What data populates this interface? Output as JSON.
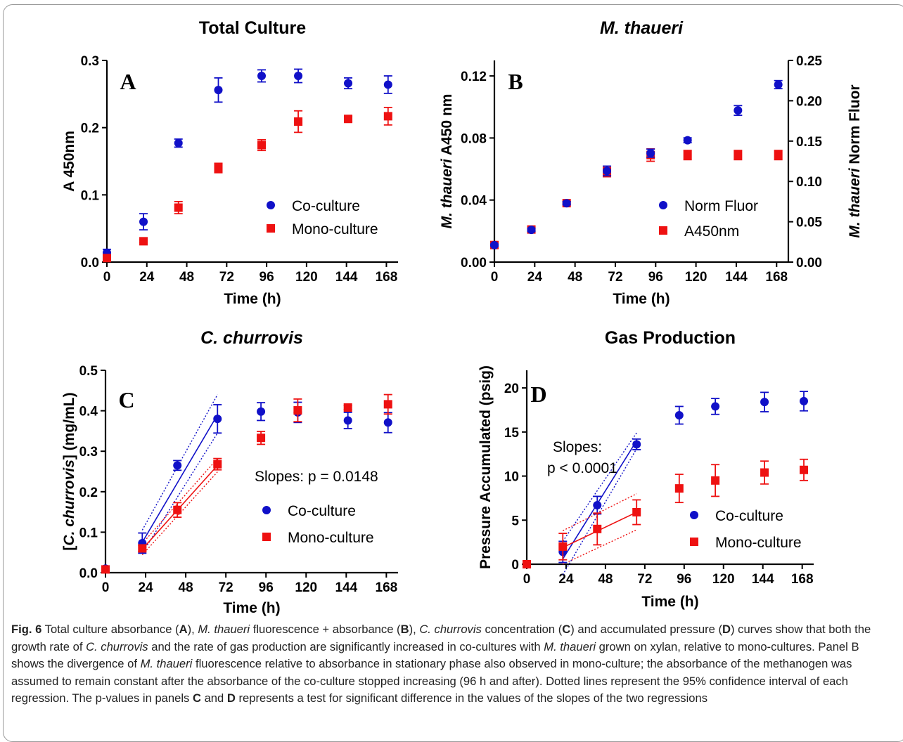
{
  "chart_data": [
    {
      "panel": "A",
      "type": "scatter",
      "title": "Total Culture",
      "xlabel": "Time (h)",
      "ylabel": "A 450nm",
      "xlim": [
        0,
        175
      ],
      "ylim": [
        0,
        0.3
      ],
      "xticks": [
        "0",
        "24",
        "48",
        "72",
        "96",
        "120",
        "144",
        "168"
      ],
      "yticks": [
        "0.0",
        "0.1",
        "0.2",
        "0.3"
      ],
      "legend_position": "lower-right",
      "series": [
        {
          "name": "Co-culture",
          "marker": "circle",
          "color": "#1010c8",
          "x": [
            0,
            22,
            43,
            67,
            93,
            115,
            145,
            169
          ],
          "y": [
            0.014,
            0.06,
            0.177,
            0.256,
            0.277,
            0.277,
            0.266,
            0.264
          ],
          "err": [
            0.005,
            0.012,
            0.006,
            0.018,
            0.009,
            0.01,
            0.008,
            0.013
          ]
        },
        {
          "name": "Mono-culture",
          "marker": "square",
          "color": "#ee1111",
          "x": [
            0,
            22,
            43,
            67,
            93,
            115,
            145,
            169
          ],
          "y": [
            0.006,
            0.031,
            0.081,
            0.14,
            0.174,
            0.209,
            0.213,
            0.217
          ],
          "err": [
            0.002,
            0.002,
            0.009,
            0.007,
            0.008,
            0.016,
            0.004,
            0.013
          ]
        }
      ]
    },
    {
      "panel": "B",
      "type": "scatter",
      "title": "M. thaueri",
      "xlabel": "Time (h)",
      "ylabel": "M. thaueri A450 nm",
      "y2label": "M. thaueri Norm Fluor",
      "xlim": [
        0,
        175
      ],
      "ylim": [
        0,
        0.13
      ],
      "y2lim": [
        0,
        0.25
      ],
      "xticks": [
        "0",
        "24",
        "48",
        "72",
        "96",
        "120",
        "144",
        "168"
      ],
      "yticks": [
        "0.00",
        "0.04",
        "0.08",
        "0.12"
      ],
      "y2ticks": [
        "0.00",
        "0.05",
        "0.10",
        "0.15",
        "0.20",
        "0.25"
      ],
      "legend_position": "lower-right",
      "series": [
        {
          "name": "Norm Fluor",
          "marker": "circle",
          "color": "#1010c8",
          "axis": "right",
          "x": [
            0,
            22,
            43,
            67,
            93,
            115,
            145,
            169
          ],
          "y": [
            0.021,
            0.04,
            0.073,
            0.113,
            0.135,
            0.151,
            0.188,
            0.22
          ],
          "err": [
            0.001,
            0.002,
            0.002,
            0.006,
            0.005,
            0.003,
            0.006,
            0.005
          ]
        },
        {
          "name": "A450nm",
          "marker": "square",
          "color": "#ee1111",
          "axis": "left",
          "x": [
            0,
            22,
            43,
            67,
            93,
            115,
            145,
            169
          ],
          "y": [
            0.011,
            0.021,
            0.038,
            0.058,
            0.069,
            0.069,
            0.069,
            0.069
          ],
          "err": [
            0.0005,
            0.001,
            0.001,
            0.003,
            0.004,
            0.003,
            0.003,
            0.003
          ]
        }
      ]
    },
    {
      "panel": "C",
      "type": "scatter",
      "title": "C. churrovis",
      "xlabel": "Time (h)",
      "ylabel": "[C. churrovis] (mg/mL)",
      "xlim": [
        0,
        175
      ],
      "ylim": [
        0,
        0.5
      ],
      "xticks": [
        "0",
        "24",
        "48",
        "72",
        "96",
        "120",
        "144",
        "168"
      ],
      "yticks": [
        "0.0",
        "0.1",
        "0.2",
        "0.3",
        "0.4",
        "0.5"
      ],
      "annotation": "Slopes: p = 0.0148",
      "legend_position": "lower-right",
      "series": [
        {
          "name": "Co-culture",
          "marker": "circle",
          "color": "#1010c8",
          "x": [
            0,
            22,
            43,
            67,
            93,
            115,
            145,
            169
          ],
          "y": [
            0.01,
            0.073,
            0.265,
            0.38,
            0.398,
            0.396,
            0.376,
            0.371
          ],
          "err": [
            0.003,
            0.025,
            0.012,
            0.035,
            0.022,
            0.025,
            0.02,
            0.025
          ],
          "fit": {
            "x0": 22,
            "x1": 67,
            "y0": 0.075,
            "y1": 0.39
          },
          "ci_upper": [
            0.105,
            0.44
          ],
          "ci_lower": [
            0.048,
            0.345
          ]
        },
        {
          "name": "Mono-culture",
          "marker": "square",
          "color": "#ee1111",
          "x": [
            0,
            22,
            43,
            67,
            93,
            115,
            145,
            169
          ],
          "y": [
            0.008,
            0.06,
            0.155,
            0.268,
            0.333,
            0.401,
            0.408,
            0.416
          ],
          "err": [
            0.002,
            0.008,
            0.018,
            0.014,
            0.016,
            0.028,
            0.005,
            0.024
          ],
          "fit": {
            "x0": 22,
            "x1": 67,
            "y0": 0.058,
            "y1": 0.265
          },
          "ci_upper": [
            0.072,
            0.282
          ],
          "ci_lower": [
            0.044,
            0.249
          ]
        }
      ]
    },
    {
      "panel": "D",
      "type": "scatter",
      "title": "Gas Production",
      "xlabel": "Time (h)",
      "ylabel": "Pressure Accumulated (psig)",
      "xlim": [
        0,
        175
      ],
      "ylim": [
        0,
        22
      ],
      "xticks": [
        "0",
        "24",
        "48",
        "72",
        "96",
        "120",
        "144",
        "168"
      ],
      "yticks": [
        "0",
        "5",
        "10",
        "15",
        "20"
      ],
      "annotation": [
        "Slopes:",
        "p < 0.0001"
      ],
      "legend_position": "lower-right",
      "series": [
        {
          "name": "Co-culture",
          "marker": "circle",
          "color": "#1010c8",
          "x": [
            0,
            22,
            43,
            67,
            93,
            115,
            145,
            169
          ],
          "y": [
            0.0,
            1.4,
            6.7,
            13.6,
            16.9,
            17.9,
            18.4,
            18.5
          ],
          "err": [
            0.1,
            1.2,
            1.0,
            0.6,
            1.0,
            0.9,
            1.1,
            1.1
          ],
          "fit": {
            "x0": 22,
            "x1": 67,
            "y0": 0.6,
            "y1": 14.0
          },
          "ci_upper": [
            2.6,
            14.9
          ],
          "ci_lower": [
            -1.2,
            13.1
          ]
        },
        {
          "name": "Mono-culture",
          "marker": "square",
          "color": "#ee1111",
          "x": [
            0,
            22,
            43,
            67,
            93,
            115,
            145,
            169
          ],
          "y": [
            0.0,
            2.0,
            4.0,
            5.9,
            8.6,
            9.5,
            10.4,
            10.7
          ],
          "err": [
            0.1,
            1.5,
            1.8,
            1.4,
            1.6,
            1.8,
            1.3,
            1.2
          ],
          "fit": {
            "x0": 22,
            "x1": 67,
            "y0": 1.9,
            "y1": 5.9
          },
          "ci_upper": [
            3.8,
            8.0
          ],
          "ci_lower": [
            0.0,
            3.9
          ]
        }
      ]
    }
  ],
  "caption": {
    "fig_label": "Fig. 6",
    "text_segments": [
      {
        "t": "  Total culture absorbance ("
      },
      {
        "t": "A",
        "b": true
      },
      {
        "t": "), "
      },
      {
        "t": "M. thaueri",
        "i": true
      },
      {
        "t": " fluorescence + absorbance ("
      },
      {
        "t": "B",
        "b": true
      },
      {
        "t": "), "
      },
      {
        "t": "C. churrovis",
        "i": true
      },
      {
        "t": " concentration ("
      },
      {
        "t": "C",
        "b": true
      },
      {
        "t": ") and accumulated pressure ("
      },
      {
        "t": "D",
        "b": true
      },
      {
        "t": ") curves show that both the growth rate of "
      },
      {
        "t": "C. churrovis",
        "i": true
      },
      {
        "t": " and the rate of gas production are significantly increased in co-cultures with "
      },
      {
        "t": "M. thaueri",
        "i": true
      },
      {
        "t": " grown on xylan, relative to mono-cultures. Panel B shows the divergence of "
      },
      {
        "t": "M. thaueri",
        "i": true
      },
      {
        "t": " fluorescence relative to absorbance in stationary phase also observed in mono-culture; the absorbance of the methanogen was assumed to remain constant after the absorbance of the co-culture stopped increasing (96 h and after). Dotted lines represent the 95% confidence interval of each regression. The p-values in panels "
      },
      {
        "t": "C",
        "b": true
      },
      {
        "t": " and "
      },
      {
        "t": "D",
        "b": true
      },
      {
        "t": " represents a test for significant difference in the values of the slopes of the two regressions"
      }
    ]
  }
}
